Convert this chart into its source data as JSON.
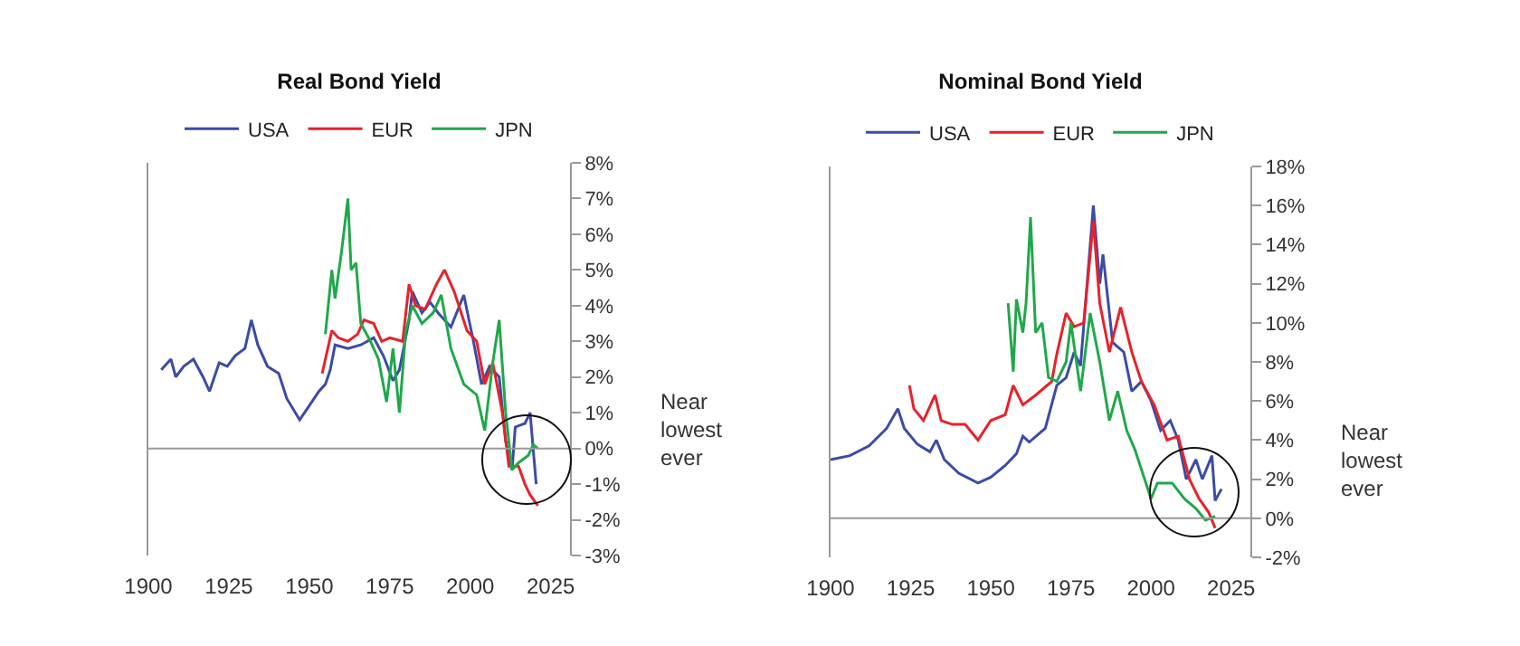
{
  "chart_data": [
    {
      "type": "line",
      "title": "Real Bond Yield",
      "legend": "top",
      "marker": "none",
      "line_style": "solid",
      "xlim": [
        1900,
        2031
      ],
      "xticks": [
        1900,
        1925,
        1950,
        1975,
        2000,
        2025
      ],
      "ylim": [
        -3,
        8
      ],
      "yticks": [
        {
          "value": 8,
          "label": "8%"
        },
        {
          "value": 7,
          "label": "7%"
        },
        {
          "value": 6,
          "label": "6%"
        },
        {
          "value": 5,
          "label": "5%"
        },
        {
          "value": 4,
          "label": "4%"
        },
        {
          "value": 3,
          "label": "3%"
        },
        {
          "value": 2,
          "label": "2%"
        },
        {
          "value": 1,
          "label": "1%"
        },
        {
          "value": 0,
          "label": "0%"
        },
        {
          "value": -1,
          "label": "-1%"
        },
        {
          "value": -2,
          "label": "-2%"
        },
        {
          "value": -3,
          "label": "-3%"
        }
      ],
      "annotations": [
        "Near lowest ever"
      ],
      "ref_lines": [
        {
          "axis": "y",
          "value": 0,
          "color": "#999999"
        }
      ],
      "series": [
        {
          "name": "USA",
          "color": "#3a4ba8",
          "x": [
            1904,
            1907,
            1908.5,
            1911,
            1914,
            1917,
            1919,
            1922,
            1924.5,
            1927,
            1930,
            1932,
            1934,
            1937,
            1940.5,
            1943,
            1947,
            1950,
            1953,
            1955,
            1956.5,
            1958,
            1962,
            1966,
            1970,
            1973,
            1976,
            1978,
            1981,
            1982,
            1985,
            1987.5,
            1990,
            1994,
            1998,
            2001,
            2003.5,
            2006,
            2009,
            2011,
            2013,
            2014,
            2017,
            2018.6,
            2020.5
          ],
          "values": [
            2.2,
            2.5,
            2.0,
            2.3,
            2.5,
            2.0,
            1.6,
            2.4,
            2.3,
            2.6,
            2.8,
            3.6,
            2.9,
            2.3,
            2.1,
            1.4,
            0.8,
            1.2,
            1.6,
            1.8,
            2.2,
            2.9,
            2.8,
            2.9,
            3.1,
            2.6,
            1.9,
            2.2,
            3.6,
            4.4,
            3.8,
            4.1,
            3.8,
            3.4,
            4.3,
            3.0,
            1.8,
            2.3,
            2.0,
            0.2,
            -0.6,
            0.6,
            0.7,
            1.0,
            -1.0
          ]
        },
        {
          "name": "EUR",
          "color": "#e8212a",
          "x": [
            1954,
            1957,
            1959,
            1962,
            1965,
            1967,
            1970,
            1972.5,
            1975,
            1979,
            1981,
            1983,
            1986,
            1989.5,
            1992,
            1995,
            1999,
            2002,
            2004.5,
            2007,
            2010,
            2012,
            2015,
            2017,
            2018.6,
            2021
          ],
          "values": [
            2.1,
            3.3,
            3.1,
            3.0,
            3.2,
            3.6,
            3.5,
            3.0,
            3.1,
            3.0,
            4.6,
            4.0,
            3.9,
            4.6,
            5.0,
            4.4,
            3.3,
            3.0,
            1.8,
            2.4,
            1.0,
            -0.5,
            -0.5,
            -1.0,
            -1.3,
            -1.6
          ]
        },
        {
          "name": "JPN",
          "color": "#1fa84a",
          "x": [
            1955,
            1957,
            1958,
            1960,
            1962,
            1963,
            1964.5,
            1966,
            1969,
            1971.5,
            1974,
            1976,
            1978,
            1980,
            1982,
            1985,
            1988.5,
            1991,
            1994,
            1998,
            2002,
            2004.5,
            2007,
            2009,
            2011,
            2013,
            2015,
            2018,
            2019.6,
            2021
          ],
          "values": [
            3.2,
            5.0,
            4.2,
            5.5,
            7.0,
            5.0,
            5.2,
            3.5,
            3.0,
            2.5,
            1.3,
            2.8,
            1.0,
            3.3,
            4.0,
            3.5,
            3.8,
            4.3,
            2.8,
            1.8,
            1.5,
            0.5,
            2.4,
            3.6,
            1.0,
            -0.6,
            -0.4,
            -0.2,
            0.1,
            0.0
          ]
        }
      ]
    },
    {
      "type": "line",
      "title": "Nominal Bond Yield",
      "legend": "top",
      "marker": "none",
      "line_style": "solid",
      "xlim": [
        1900,
        2031
      ],
      "xticks": [
        1900,
        1925,
        1950,
        1975,
        2000,
        2025
      ],
      "ylim": [
        -2,
        18
      ],
      "yticks": [
        {
          "value": 18,
          "label": "18%"
        },
        {
          "value": 16,
          "label": "16%"
        },
        {
          "value": 14,
          "label": "14%"
        },
        {
          "value": 12,
          "label": "12%"
        },
        {
          "value": 10,
          "label": "10%"
        },
        {
          "value": 8,
          "label": "8%"
        },
        {
          "value": 6,
          "label": "6%"
        },
        {
          "value": 4,
          "label": "4%"
        },
        {
          "value": 2,
          "label": "2%"
        },
        {
          "value": 0,
          "label": "0%"
        },
        {
          "value": -2,
          "label": "-2%"
        }
      ],
      "annotations": [
        "Near lowest ever"
      ],
      "ref_lines": [
        {
          "axis": "y",
          "value": 0,
          "color": "#999999"
        }
      ],
      "series": [
        {
          "name": "USA",
          "color": "#3a4ba8",
          "x": [
            1900,
            1906,
            1912,
            1917.5,
            1921,
            1923,
            1927,
            1931,
            1933,
            1935.5,
            1940,
            1946,
            1950,
            1954.5,
            1958,
            1960,
            1962,
            1967,
            1970.6,
            1973.5,
            1976,
            1978,
            1982,
            1984,
            1985,
            1988,
            1991.5,
            1994,
            1997,
            2000,
            2003,
            2006,
            2008.5,
            2011,
            2014,
            2016,
            2019,
            2020,
            2022
          ],
          "values": [
            3.0,
            3.2,
            3.7,
            4.6,
            5.6,
            4.6,
            3.8,
            3.4,
            4.0,
            3.0,
            2.3,
            1.8,
            2.1,
            2.7,
            3.3,
            4.2,
            3.9,
            4.6,
            6.8,
            7.2,
            8.5,
            7.8,
            16.0,
            12.0,
            13.5,
            9.0,
            8.5,
            6.5,
            7.0,
            6.0,
            4.5,
            5.0,
            4.0,
            2.0,
            3.0,
            2.0,
            3.2,
            0.9,
            1.5
          ]
        },
        {
          "name": "EUR",
          "color": "#e8212a",
          "x": [
            1924.6,
            1926,
            1929,
            1932.6,
            1934.5,
            1938,
            1942,
            1946,
            1950,
            1954.5,
            1957,
            1960,
            1964,
            1969,
            1970.6,
            1973.5,
            1976,
            1979,
            1982,
            1984,
            1987,
            1990.5,
            1994,
            1997,
            2001,
            2005,
            2008.5,
            2012,
            2015,
            2018,
            2020
          ],
          "values": [
            6.8,
            5.6,
            5.0,
            6.3,
            5.0,
            4.8,
            4.8,
            4.0,
            5.0,
            5.3,
            6.8,
            5.8,
            6.3,
            7.0,
            8.4,
            10.5,
            9.8,
            10.0,
            15.2,
            11.0,
            8.5,
            10.8,
            8.5,
            7.0,
            5.8,
            4.0,
            4.2,
            2.0,
            1.0,
            0.3,
            -0.5
          ]
        },
        {
          "name": "JPN",
          "color": "#1fa84a",
          "x": [
            1955.4,
            1957,
            1958,
            1960,
            1961,
            1962.4,
            1964,
            1966,
            1968,
            1970.6,
            1973.5,
            1975,
            1978,
            1981,
            1984,
            1987,
            1989.6,
            1992.4,
            1995,
            1998,
            2000,
            2002,
            2006.6,
            2010.4,
            2014,
            2017,
            2020
          ],
          "values": [
            11.0,
            7.5,
            11.2,
            9.5,
            11.0,
            15.4,
            9.5,
            10.0,
            7.2,
            7.0,
            8.0,
            10.0,
            6.5,
            10.5,
            8.0,
            5.0,
            6.5,
            4.5,
            3.5,
            2.0,
            1.0,
            1.8,
            1.8,
            1.0,
            0.5,
            -0.1,
            0.1
          ]
        }
      ]
    }
  ]
}
